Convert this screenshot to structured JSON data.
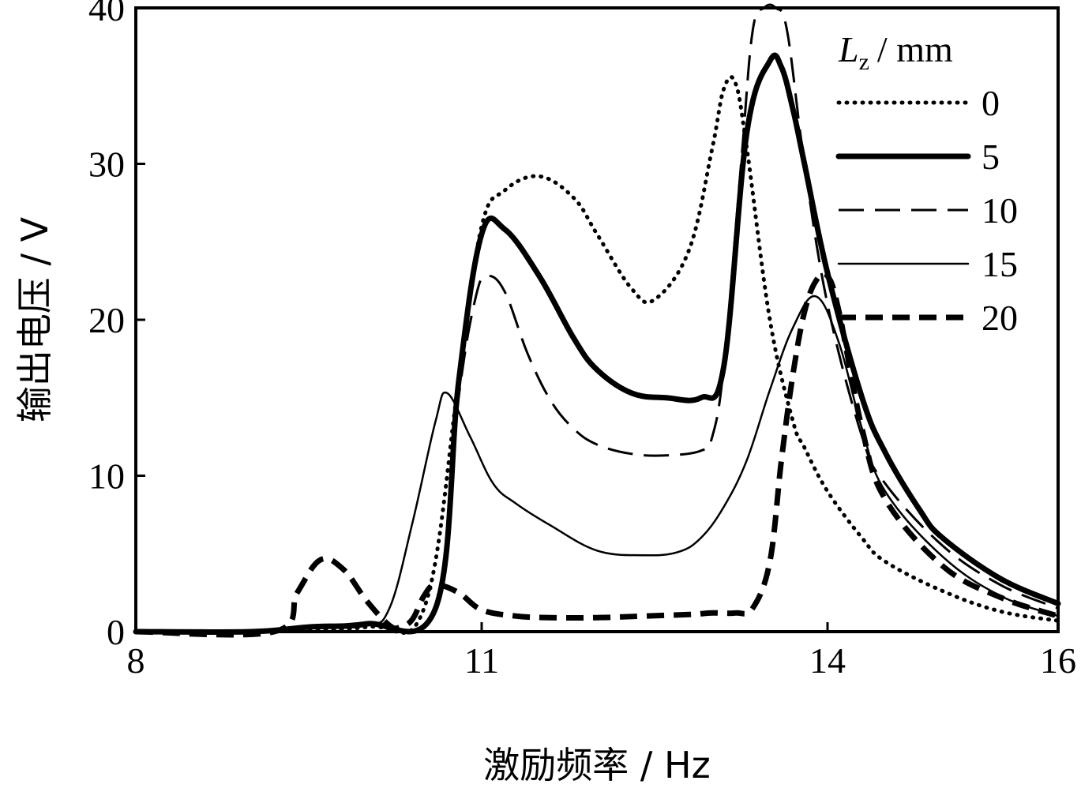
{
  "chart_data": {
    "type": "line",
    "title": "",
    "xlabel": "激励频率 / Hz",
    "ylabel": "输出电压 / V",
    "xlim": [
      8,
      16
    ],
    "ylim": [
      0,
      40
    ],
    "xticks": [
      8,
      11,
      14,
      16
    ],
    "yticks": [
      0,
      10,
      20,
      30,
      40
    ],
    "grid": false,
    "legend": {
      "placement": "top-right",
      "title_symbol": "L",
      "title_subscript": "z",
      "title_unit": "/ mm"
    },
    "series": [
      {
        "name": "0",
        "style": "dotted",
        "x": [
          8.0,
          9.0,
          10.0,
          10.5,
          10.8,
          11.0,
          11.2,
          11.5,
          11.8,
          12.0,
          12.3,
          12.5,
          12.8,
          13.0,
          13.1,
          13.2,
          13.3,
          13.5,
          13.7,
          13.8,
          14.0,
          14.3,
          14.5,
          15.0,
          15.5,
          16.0
        ],
        "y": [
          0,
          0,
          0.3,
          1.5,
          16,
          26,
          28.3,
          29.2,
          27.8,
          25.5,
          22,
          21.3,
          24.5,
          31,
          34.8,
          35.2,
          31,
          20,
          13.5,
          11.8,
          9,
          6,
          4.5,
          2.6,
          1.3,
          0.7
        ]
      },
      {
        "name": "5",
        "style": "solid-thick",
        "x": [
          8.0,
          9.0,
          9.5,
          10.0,
          10.6,
          10.8,
          11.0,
          11.2,
          11.5,
          11.8,
          12.0,
          12.3,
          12.6,
          12.9,
          13.1,
          13.3,
          13.5,
          13.6,
          13.7,
          13.8,
          14.0,
          14.3,
          14.5,
          14.8,
          15.0,
          15.5,
          16.0
        ],
        "y": [
          0,
          0,
          0.3,
          0.5,
          1.5,
          16,
          25.5,
          25.8,
          22.8,
          18.8,
          16.8,
          15.3,
          15.0,
          15.0,
          17,
          32,
          36.6,
          36.2,
          33.5,
          30,
          23,
          15,
          11.5,
          7.8,
          6,
          3.4,
          1.8
        ]
      },
      {
        "name": "10",
        "style": "dashed-long",
        "x": [
          8.0,
          9.0,
          9.5,
          10.0,
          10.6,
          10.8,
          10.95,
          11.05,
          11.2,
          11.4,
          11.6,
          11.8,
          12.0,
          12.3,
          12.6,
          12.9,
          13.0,
          13.1,
          13.25,
          13.35,
          13.45,
          13.55,
          13.65,
          13.8,
          14.0,
          14.3,
          14.5,
          15.0,
          15.5,
          16.0
        ],
        "y": [
          0,
          0,
          0.3,
          0.5,
          1.5,
          15,
          21.5,
          22.8,
          21.8,
          17.8,
          14.8,
          13,
          12,
          11.4,
          11.3,
          11.6,
          12.5,
          17,
          30,
          38.5,
          40,
          40,
          38.5,
          30,
          21,
          12.5,
          9.5,
          5.5,
          3,
          1.5
        ]
      },
      {
        "name": "15",
        "style": "solid-thin",
        "x": [
          8.0,
          9.0,
          9.5,
          10.0,
          10.2,
          10.4,
          10.6,
          10.7,
          10.9,
          11.1,
          11.3,
          11.6,
          12.0,
          12.4,
          12.7,
          12.9,
          13.1,
          13.3,
          13.5,
          13.7,
          13.9,
          14.1,
          14.3,
          14.5,
          15.0,
          15.5,
          16.0
        ],
        "y": [
          0,
          0,
          0.2,
          0.4,
          1.5,
          7,
          13.5,
          15.3,
          12.5,
          9.5,
          8.2,
          6.8,
          5.2,
          4.9,
          5.1,
          6,
          8,
          11,
          15.5,
          19.5,
          21.5,
          18.5,
          13,
          9,
          4.8,
          2.3,
          1.0
        ]
      },
      {
        "name": "20",
        "style": "dashed-short",
        "x": [
          8.0,
          9.2,
          9.4,
          9.6,
          9.8,
          10.0,
          10.2,
          10.3,
          10.4,
          10.5,
          10.6,
          10.8,
          11.0,
          11.3,
          11.6,
          12.0,
          12.4,
          12.8,
          13.0,
          13.2,
          13.35,
          13.5,
          13.6,
          13.7,
          13.8,
          13.9,
          14.0,
          14.1,
          14.3,
          14.5,
          15.0,
          15.5,
          16.0
        ],
        "y": [
          0,
          0,
          2.5,
          4.6,
          4.0,
          2.0,
          0.4,
          0.3,
          0.8,
          2.3,
          3.0,
          2.5,
          1.4,
          1.0,
          0.9,
          0.9,
          1.0,
          1.1,
          1.2,
          1.2,
          1.5,
          4.5,
          11,
          16.5,
          20.5,
          22.5,
          22.8,
          20.5,
          13,
          8.5,
          4.2,
          2.2,
          1.0
        ]
      }
    ]
  }
}
